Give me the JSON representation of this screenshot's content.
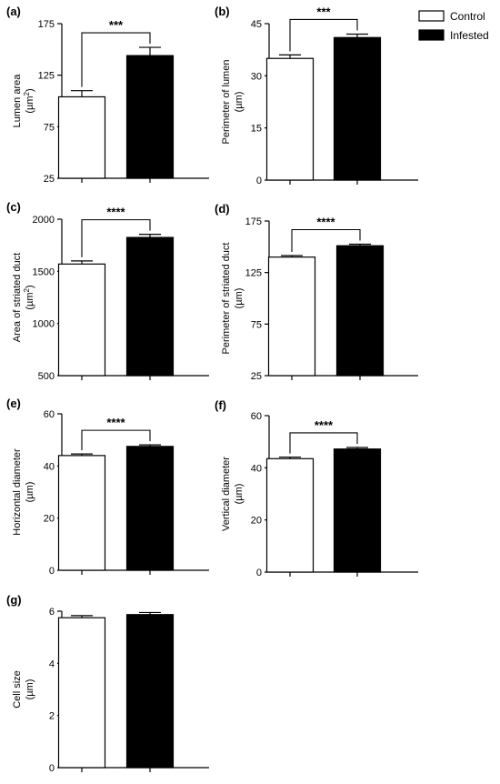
{
  "legend": {
    "placement": "top-right",
    "entries": [
      {
        "name": "Control",
        "fill": "#ffffff"
      },
      {
        "name": "Infested",
        "fill": "#000000"
      }
    ]
  },
  "colors": {
    "control": "#ffffff",
    "infested": "#000000",
    "stroke": "#000000"
  },
  "chart_data": [
    {
      "type": "bar",
      "panel": "(a)",
      "categories": [
        "Control",
        "Infested"
      ],
      "values": [
        104,
        144
      ],
      "errors": [
        6,
        8
      ],
      "ylabel": "Lumen area",
      "yunit": "(µm",
      "yunit_sup": "2",
      "yunit_end": ")",
      "ylim": [
        25,
        175
      ],
      "yticks": [
        "25",
        "75",
        "125",
        "175"
      ],
      "significance": "***"
    },
    {
      "type": "bar",
      "panel": "(b)",
      "categories": [
        "Control",
        "Infested"
      ],
      "values": [
        35,
        41
      ],
      "errors": [
        1,
        1
      ],
      "ylabel": "Perimeter of lumen",
      "yunit": "(µm)",
      "ylim": [
        0,
        45
      ],
      "yticks": [
        "0",
        "15",
        "30",
        "45"
      ],
      "significance": "***"
    },
    {
      "type": "bar",
      "panel": "(c)",
      "categories": [
        "Control",
        "Infested"
      ],
      "values": [
        1570,
        1825
      ],
      "errors": [
        30,
        30
      ],
      "ylabel": "Area of striated duct",
      "yunit": "(µm",
      "yunit_sup": "2",
      "yunit_end": ")",
      "ylim": [
        500,
        2000
      ],
      "yticks": [
        "500",
        "1000",
        "1500",
        "2000"
      ],
      "significance": "****"
    },
    {
      "type": "bar",
      "panel": "(d)",
      "categories": [
        "Control",
        "Infested"
      ],
      "values": [
        140,
        151
      ],
      "errors": [
        1.5,
        1.5
      ],
      "ylabel": "Perimeter of striated duct",
      "yunit": "(µm)",
      "ylim": [
        25,
        175
      ],
      "yticks": [
        "25",
        "75",
        "125",
        "175"
      ],
      "significance": "****"
    },
    {
      "type": "bar",
      "panel": "(e)",
      "categories": [
        "Control",
        "Infested"
      ],
      "values": [
        44,
        47.5
      ],
      "errors": [
        0.6,
        0.6
      ],
      "ylabel": "Horizontal diameter",
      "yunit": "(µm)",
      "ylim": [
        0,
        60
      ],
      "yticks": [
        "0",
        "20",
        "40",
        "60"
      ],
      "significance": "****"
    },
    {
      "type": "bar",
      "panel": "(f)",
      "categories": [
        "Control",
        "Infested"
      ],
      "values": [
        43.5,
        47.2
      ],
      "errors": [
        0.6,
        0.6
      ],
      "ylabel": "Vertical diameter",
      "yunit": "(µm)",
      "ylim": [
        0,
        60
      ],
      "yticks": [
        "0",
        "20",
        "40",
        "60"
      ],
      "significance": "****"
    },
    {
      "type": "bar",
      "panel": "(g)",
      "categories": [
        "Control",
        "Infested"
      ],
      "values": [
        5.75,
        5.87
      ],
      "errors": [
        0.08,
        0.08
      ],
      "ylabel": "Cell size",
      "yunit": "(µm)",
      "ylim": [
        0,
        6
      ],
      "yticks": [
        "0",
        "2",
        "4",
        "6"
      ],
      "significance": ""
    }
  ]
}
